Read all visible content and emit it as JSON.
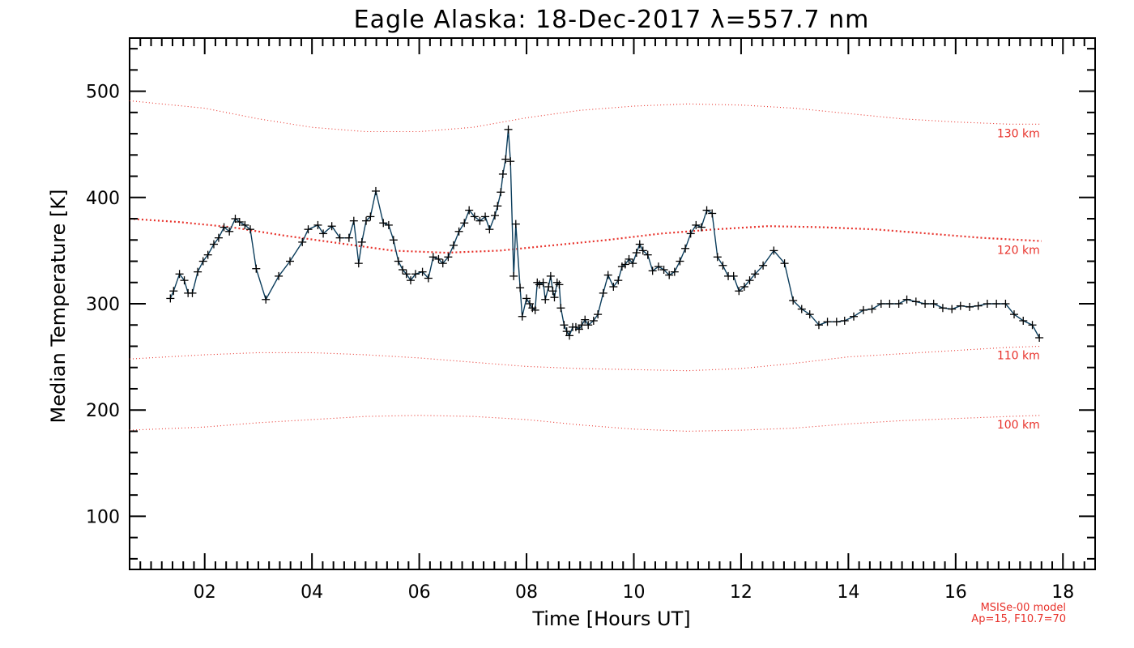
{
  "chart_data": {
    "type": "line",
    "title": "Eagle Alaska: 18-Dec-2017 λ=557.7 nm",
    "xlabel": "Time [Hours UT]",
    "ylabel": "Median Temperature [K]",
    "xlim": [
      0.6,
      18.6
    ],
    "ylim": [
      50,
      550
    ],
    "xticks": [
      2,
      4,
      6,
      8,
      10,
      12,
      14,
      16,
      18
    ],
    "xtick_labels": [
      "02",
      "04",
      "06",
      "08",
      "10",
      "12",
      "14",
      "16",
      "18"
    ],
    "yticks": [
      100,
      200,
      300,
      400,
      500
    ],
    "ytick_labels": [
      "100",
      "200",
      "300",
      "400",
      "500"
    ],
    "grid": false,
    "model_note": [
      "MSISe-00 model",
      "Ap=15, F10.7=70"
    ],
    "series": [
      {
        "color": "#0b3d5c",
        "marker": "plus",
        "points": [
          [
            1.36,
            305
          ],
          [
            1.42,
            312
          ],
          [
            1.53,
            328
          ],
          [
            1.62,
            322
          ],
          [
            1.69,
            310
          ],
          [
            1.77,
            310
          ],
          [
            1.87,
            330
          ],
          [
            1.97,
            340
          ],
          [
            2.06,
            346
          ],
          [
            2.17,
            356
          ],
          [
            2.26,
            362
          ],
          [
            2.36,
            372
          ],
          [
            2.46,
            368
          ],
          [
            2.57,
            380
          ],
          [
            2.65,
            377
          ],
          [
            2.75,
            374
          ],
          [
            2.85,
            370
          ],
          [
            2.96,
            333
          ],
          [
            3.14,
            304
          ],
          [
            3.38,
            326
          ],
          [
            3.59,
            340
          ],
          [
            3.82,
            358
          ],
          [
            3.93,
            370
          ],
          [
            4.11,
            374
          ],
          [
            4.21,
            366
          ],
          [
            4.37,
            373
          ],
          [
            4.52,
            362
          ],
          [
            4.69,
            362
          ],
          [
            4.78,
            378
          ],
          [
            4.87,
            338
          ],
          [
            4.93,
            358
          ],
          [
            5.01,
            378
          ],
          [
            5.09,
            382
          ],
          [
            5.19,
            406
          ],
          [
            5.33,
            376
          ],
          [
            5.43,
            374
          ],
          [
            5.52,
            360
          ],
          [
            5.61,
            340
          ],
          [
            5.69,
            332
          ],
          [
            5.76,
            328
          ],
          [
            5.84,
            322
          ],
          [
            5.93,
            328
          ],
          [
            6.06,
            330
          ],
          [
            6.17,
            324
          ],
          [
            6.26,
            344
          ],
          [
            6.36,
            342
          ],
          [
            6.44,
            338
          ],
          [
            6.54,
            344
          ],
          [
            6.64,
            355
          ],
          [
            6.74,
            368
          ],
          [
            6.84,
            376
          ],
          [
            6.93,
            388
          ],
          [
            7.03,
            382
          ],
          [
            7.13,
            378
          ],
          [
            7.23,
            382
          ],
          [
            7.31,
            370
          ],
          [
            7.41,
            383
          ],
          [
            7.46,
            392
          ],
          [
            7.52,
            405
          ],
          [
            7.56,
            422
          ],
          [
            7.61,
            436
          ],
          [
            7.66,
            464
          ],
          [
            7.7,
            434
          ],
          [
            7.76,
            326
          ],
          [
            7.8,
            375
          ],
          [
            7.88,
            315
          ],
          [
            7.92,
            288
          ],
          [
            8.0,
            305
          ],
          [
            8.06,
            300
          ],
          [
            8.11,
            296
          ],
          [
            8.16,
            294
          ],
          [
            8.2,
            320
          ],
          [
            8.24,
            318
          ],
          [
            8.31,
            320
          ],
          [
            8.35,
            304
          ],
          [
            8.41,
            316
          ],
          [
            8.45,
            326
          ],
          [
            8.49,
            312
          ],
          [
            8.52,
            306
          ],
          [
            8.57,
            320
          ],
          [
            8.61,
            318
          ],
          [
            8.64,
            296
          ],
          [
            8.7,
            280
          ],
          [
            8.75,
            274
          ],
          [
            8.8,
            270
          ],
          [
            8.86,
            278
          ],
          [
            8.92,
            278
          ],
          [
            8.98,
            276
          ],
          [
            9.03,
            280
          ],
          [
            9.09,
            285
          ],
          [
            9.15,
            280
          ],
          [
            9.25,
            284
          ],
          [
            9.33,
            290
          ],
          [
            9.43,
            310
          ],
          [
            9.52,
            327
          ],
          [
            9.62,
            316
          ],
          [
            9.71,
            322
          ],
          [
            9.78,
            335
          ],
          [
            9.84,
            337
          ],
          [
            9.91,
            342
          ],
          [
            9.98,
            338
          ],
          [
            10.05,
            348
          ],
          [
            10.11,
            356
          ],
          [
            10.17,
            350
          ],
          [
            10.26,
            346
          ],
          [
            10.35,
            331
          ],
          [
            10.46,
            335
          ],
          [
            10.56,
            332
          ],
          [
            10.66,
            327
          ],
          [
            10.76,
            330
          ],
          [
            10.86,
            340
          ],
          [
            10.96,
            352
          ],
          [
            11.06,
            366
          ],
          [
            11.16,
            374
          ],
          [
            11.26,
            372
          ],
          [
            11.36,
            388
          ],
          [
            11.46,
            385
          ],
          [
            11.56,
            344
          ],
          [
            11.66,
            336
          ],
          [
            11.76,
            326
          ],
          [
            11.86,
            326
          ],
          [
            11.96,
            312
          ],
          [
            12.06,
            316
          ],
          [
            12.16,
            322
          ],
          [
            12.26,
            328
          ],
          [
            12.41,
            336
          ],
          [
            12.61,
            350
          ],
          [
            12.81,
            338
          ],
          [
            12.97,
            303
          ],
          [
            13.13,
            295
          ],
          [
            13.28,
            290
          ],
          [
            13.45,
            280
          ],
          [
            13.61,
            283
          ],
          [
            13.78,
            283
          ],
          [
            13.93,
            284
          ],
          [
            14.1,
            288
          ],
          [
            14.28,
            294
          ],
          [
            14.44,
            295
          ],
          [
            14.61,
            300
          ],
          [
            14.77,
            300
          ],
          [
            14.94,
            300
          ],
          [
            15.09,
            304
          ],
          [
            15.26,
            302
          ],
          [
            15.43,
            300
          ],
          [
            15.59,
            300
          ],
          [
            15.76,
            296
          ],
          [
            15.93,
            295
          ],
          [
            16.09,
            298
          ],
          [
            16.26,
            297
          ],
          [
            16.42,
            298
          ],
          [
            16.59,
            300
          ],
          [
            16.76,
            300
          ],
          [
            16.93,
            300
          ],
          [
            17.09,
            290
          ],
          [
            17.26,
            284
          ],
          [
            17.43,
            280
          ],
          [
            17.56,
            268
          ]
        ]
      }
    ],
    "model_curves": [
      {
        "label": "130 km",
        "color": "#e8322b",
        "style": "dotted-thin",
        "points": [
          [
            0.6,
            491
          ],
          [
            2,
            484
          ],
          [
            3,
            474
          ],
          [
            4,
            466
          ],
          [
            5,
            462
          ],
          [
            6,
            462
          ],
          [
            7,
            466
          ],
          [
            8,
            475
          ],
          [
            9,
            482
          ],
          [
            10,
            486
          ],
          [
            11,
            488
          ],
          [
            12,
            487
          ],
          [
            13,
            484
          ],
          [
            14,
            479
          ],
          [
            15,
            474
          ],
          [
            16,
            471
          ],
          [
            17,
            469
          ],
          [
            17.6,
            469
          ]
        ]
      },
      {
        "label": "120 km",
        "color": "#e8322b",
        "style": "dotted-thick",
        "points": [
          [
            0.6,
            380
          ],
          [
            1.5,
            377
          ],
          [
            2.5,
            372
          ],
          [
            3.5,
            364
          ],
          [
            4.5,
            357
          ],
          [
            5.5,
            350
          ],
          [
            6.5,
            348
          ],
          [
            7.5,
            350
          ],
          [
            8.5,
            355
          ],
          [
            9.5,
            360
          ],
          [
            10.5,
            366
          ],
          [
            11.5,
            370
          ],
          [
            12.5,
            373
          ],
          [
            13.5,
            372
          ],
          [
            14.5,
            370
          ],
          [
            15.5,
            366
          ],
          [
            16.5,
            362
          ],
          [
            17.6,
            359
          ]
        ]
      },
      {
        "label": "110 km",
        "color": "#e8322b",
        "style": "dotted-thin",
        "points": [
          [
            0.6,
            248
          ],
          [
            2,
            252
          ],
          [
            3,
            254
          ],
          [
            4,
            254
          ],
          [
            5,
            252
          ],
          [
            6,
            249
          ],
          [
            7,
            245
          ],
          [
            8,
            241
          ],
          [
            9,
            239
          ],
          [
            10,
            238
          ],
          [
            11,
            237
          ],
          [
            12,
            239
          ],
          [
            13,
            244
          ],
          [
            14,
            250
          ],
          [
            15,
            253
          ],
          [
            16,
            256
          ],
          [
            17,
            259
          ],
          [
            17.6,
            260
          ]
        ]
      },
      {
        "label": "100 km",
        "color": "#e8322b",
        "style": "dotted-thin",
        "points": [
          [
            0.6,
            181
          ],
          [
            2,
            184
          ],
          [
            3,
            188
          ],
          [
            4,
            191
          ],
          [
            5,
            194
          ],
          [
            6,
            195
          ],
          [
            7,
            194
          ],
          [
            8,
            191
          ],
          [
            9,
            186
          ],
          [
            10,
            182
          ],
          [
            11,
            180
          ],
          [
            12,
            181
          ],
          [
            13,
            183
          ],
          [
            14,
            187
          ],
          [
            15,
            190
          ],
          [
            16,
            192
          ],
          [
            17,
            194
          ],
          [
            17.6,
            195
          ]
        ]
      }
    ]
  }
}
